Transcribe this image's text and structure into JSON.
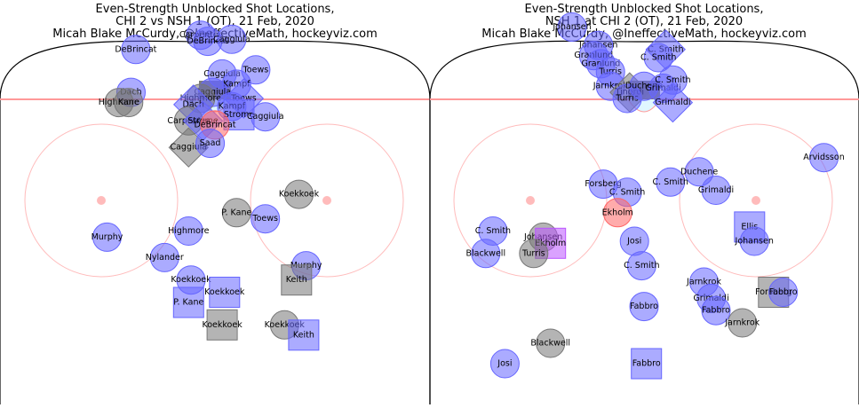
{
  "chart_data": [
    {
      "type": "scatter",
      "title": [
        "Even-Strength Unblocked Shot Locations,",
        "CHI 2 vs NSH 1 (OT), 21 Feb, 2020",
        "Micah Blake McCurdy, @IneffectiveMath, hockeyviz.com"
      ],
      "colors": {
        "team": "#6666ff",
        "opp": "#777777",
        "goal": "#ff6666",
        "team_goal": "#bb55ff"
      },
      "shots": [
        {
          "player": "DeBrincat",
          "x": -33,
          "y": 74,
          "team": "team",
          "shape": "circle"
        },
        {
          "player": "Carpenter",
          "x": -6,
          "y": 81,
          "team": "team",
          "shape": "circle"
        },
        {
          "player": "DeBrincat",
          "x": -3,
          "y": 78,
          "team": "team",
          "shape": "circle"
        },
        {
          "player": "Caggiula",
          "x": 7,
          "y": 79,
          "team": "team",
          "shape": "circle"
        },
        {
          "player": "Toews",
          "x": 17,
          "y": 64,
          "team": "team",
          "shape": "circle"
        },
        {
          "player": "Dach",
          "x": -35,
          "y": 53,
          "team": "team",
          "shape": "circle"
        },
        {
          "player": "Highmore",
          "x": -40,
          "y": 48,
          "team": "opp",
          "shape": "circle"
        },
        {
          "player": "Kane",
          "x": -36,
          "y": 48,
          "team": "opp",
          "shape": "circle"
        },
        {
          "player": "Caggiula",
          "x": 3,
          "y": 62,
          "team": "team",
          "shape": "circle"
        },
        {
          "player": "Kampf",
          "x": 9,
          "y": 57,
          "team": "team",
          "shape": "circle"
        },
        {
          "player": "Caggiula",
          "x": -1,
          "y": 53,
          "team": "team",
          "shape": "circle"
        },
        {
          "player": "Highmore",
          "x": -6,
          "y": 50,
          "team": "opp",
          "shape": "circle"
        },
        {
          "player": "Toews",
          "x": 12,
          "y": 50,
          "team": "team",
          "shape": "diamond"
        },
        {
          "player": "Kampf",
          "x": 7,
          "y": 46,
          "team": "team",
          "shape": "circle"
        },
        {
          "player": "Strome",
          "x": 10,
          "y": 42,
          "team": "team",
          "shape": "square"
        },
        {
          "player": "Caggiula",
          "x": 21,
          "y": 41,
          "team": "team",
          "shape": "circle"
        },
        {
          "player": "Dach",
          "x": -9,
          "y": 47,
          "team": "team",
          "shape": "diamond"
        },
        {
          "player": "Carpenter",
          "x": -11,
          "y": 39,
          "team": "opp",
          "shape": "circle"
        },
        {
          "player": "Strome",
          "x": -5,
          "y": 39,
          "team": "team",
          "shape": "diamond"
        },
        {
          "player": "DeBrincat",
          "x": 0,
          "y": 37,
          "team": "goal",
          "shape": "circle"
        },
        {
          "player": "Caggiula",
          "x": -11,
          "y": 26,
          "team": "opp",
          "shape": "diamond"
        },
        {
          "player": "Saad",
          "x": -2,
          "y": 28,
          "team": "team",
          "shape": "circle"
        },
        {
          "player": "P. Kane",
          "x": 9,
          "y": -6,
          "team": "opp",
          "shape": "circle"
        },
        {
          "player": "Koekkoek",
          "x": 35,
          "y": 3,
          "team": "opp",
          "shape": "circle"
        },
        {
          "player": "Toews",
          "x": 21,
          "y": -9,
          "team": "team",
          "shape": "circle"
        },
        {
          "player": "Highmore",
          "x": -11,
          "y": -15,
          "team": "team",
          "shape": "circle"
        },
        {
          "player": "Murphy",
          "x": -45,
          "y": -18,
          "team": "team",
          "shape": "circle"
        },
        {
          "player": "Nylander",
          "x": -21,
          "y": -28,
          "team": "team",
          "shape": "circle"
        },
        {
          "player": "Murphy",
          "x": 38,
          "y": -32,
          "team": "team",
          "shape": "circle"
        },
        {
          "player": "Keith",
          "x": 34,
          "y": -39,
          "team": "opp",
          "shape": "square"
        },
        {
          "player": "Koekkoek",
          "x": -10,
          "y": -39,
          "team": "team",
          "shape": "circle"
        },
        {
          "player": "Koekkoek",
          "x": 4,
          "y": -45,
          "team": "team",
          "shape": "square"
        },
        {
          "player": "P. Kane",
          "x": -11,
          "y": -50,
          "team": "team",
          "shape": "square"
        },
        {
          "player": "Koekkoek",
          "x": 3,
          "y": -61,
          "team": "opp",
          "shape": "square"
        },
        {
          "player": "Koekkoek",
          "x": 29,
          "y": -61,
          "team": "opp",
          "shape": "circle"
        },
        {
          "player": "Keith",
          "x": 37,
          "y": -66,
          "team": "team",
          "shape": "square"
        }
      ]
    },
    {
      "type": "scatter",
      "title": [
        "Even-Strength Unblocked Shot Locations,",
        "NSH 1 at CHI 2 (OT), 21 Feb, 2020",
        "Micah Blake McCurdy, @IneffectiveMath, hockeyviz.com"
      ],
      "colors": {
        "team": "#6666ff",
        "opp": "#777777",
        "goal": "#ff6666",
        "team_goal": "#bb55ff"
      },
      "shots": [
        {
          "player": "Johansen",
          "x": -30,
          "y": 85,
          "team": "team",
          "shape": "circle"
        },
        {
          "player": "Johansen",
          "x": -19,
          "y": 76,
          "team": "team",
          "shape": "circle"
        },
        {
          "player": "Granlund",
          "x": -21,
          "y": 71,
          "team": "team",
          "shape": "circle"
        },
        {
          "player": "Granlund",
          "x": -18,
          "y": 67,
          "team": "team",
          "shape": "circle"
        },
        {
          "player": "C. Smith",
          "x": 9,
          "y": 74,
          "team": "team",
          "shape": "diamond"
        },
        {
          "player": "C. Smith",
          "x": 6,
          "y": 70,
          "team": "team",
          "shape": "circle"
        },
        {
          "player": "Turris",
          "x": -14,
          "y": 63,
          "team": "team",
          "shape": "circle"
        },
        {
          "player": "Jarnkrok",
          "x": -14,
          "y": 56,
          "team": "team",
          "shape": "circle"
        },
        {
          "player": "Tinordi",
          "x": -6,
          "y": 53,
          "team": "opp",
          "shape": "diamond"
        },
        {
          "player": "Turris",
          "x": -7,
          "y": 50,
          "team": "team",
          "shape": "circle"
        },
        {
          "player": "Duchene",
          "x": 0,
          "y": 56,
          "team": "team",
          "shape": "circle"
        },
        {
          "player": "Grimaldi",
          "x": 8,
          "y": 55,
          "team": "team",
          "shape": "circle"
        },
        {
          "player": "C. Smith",
          "x": 12,
          "y": 59,
          "team": "team",
          "shape": "circle"
        },
        {
          "player": "Grimaldi",
          "x": 12,
          "y": 48,
          "team": "team",
          "shape": "diamond"
        },
        {
          "player": "Forsberg",
          "x": -17,
          "y": 8,
          "team": "team",
          "shape": "circle"
        },
        {
          "player": "C. Smith",
          "x": -7,
          "y": 4,
          "team": "team",
          "shape": "circle"
        },
        {
          "player": "C. Smith",
          "x": 11,
          "y": 9,
          "team": "team",
          "shape": "circle"
        },
        {
          "player": "Duchene",
          "x": 23,
          "y": 14,
          "team": "team",
          "shape": "circle"
        },
        {
          "player": "Grimaldi",
          "x": 30,
          "y": 5,
          "team": "team",
          "shape": "circle"
        },
        {
          "player": "Arvidsson",
          "x": 75,
          "y": 21,
          "team": "team",
          "shape": "circle"
        },
        {
          "player": "Ekholm",
          "x": -11,
          "y": -6,
          "team": "goal",
          "shape": "circle"
        },
        {
          "player": "C. Smith",
          "x": -63,
          "y": -15,
          "team": "team",
          "shape": "circle"
        },
        {
          "player": "Blackwell",
          "x": -66,
          "y": -26,
          "team": "team",
          "shape": "circle"
        },
        {
          "player": "Johansen",
          "x": -42,
          "y": -18,
          "team": "opp",
          "shape": "circle"
        },
        {
          "player": "Ekholm",
          "x": -39,
          "y": -21,
          "team": "team_goal",
          "shape": "square"
        },
        {
          "player": "Turris",
          "x": -46,
          "y": -26,
          "team": "opp",
          "shape": "circle"
        },
        {
          "player": "Josi",
          "x": -4,
          "y": -20,
          "team": "team",
          "shape": "circle"
        },
        {
          "player": "C. Smith",
          "x": -1,
          "y": -32,
          "team": "team",
          "shape": "circle"
        },
        {
          "player": "Ellis",
          "x": 44,
          "y": -13,
          "team": "team",
          "shape": "square"
        },
        {
          "player": "Johansen",
          "x": 46,
          "y": -20,
          "team": "team",
          "shape": "circle"
        },
        {
          "player": "Jarnkrok",
          "x": 25,
          "y": -40,
          "team": "team",
          "shape": "circle"
        },
        {
          "player": "Grimaldi",
          "x": 28,
          "y": -48,
          "team": "team",
          "shape": "circle"
        },
        {
          "player": "Fabbro",
          "x": 30,
          "y": -54,
          "team": "team",
          "shape": "circle"
        },
        {
          "player": "Forsberg",
          "x": 54,
          "y": -45,
          "team": "opp",
          "shape": "square"
        },
        {
          "player": "Fabbro",
          "x": 58,
          "y": -45,
          "team": "team",
          "shape": "circle"
        },
        {
          "player": "Jarnkrok",
          "x": 41,
          "y": -60,
          "team": "opp",
          "shape": "circle"
        },
        {
          "player": "Fabbro",
          "x": 0,
          "y": -52,
          "team": "team",
          "shape": "circle"
        },
        {
          "player": "Blackwell",
          "x": -39,
          "y": -70,
          "team": "opp",
          "shape": "circle"
        },
        {
          "player": "Josi",
          "x": -58,
          "y": -80,
          "team": "team",
          "shape": "circle"
        },
        {
          "player": "Fabbro",
          "x": 1,
          "y": -80,
          "team": "team",
          "shape": "square"
        }
      ]
    }
  ]
}
